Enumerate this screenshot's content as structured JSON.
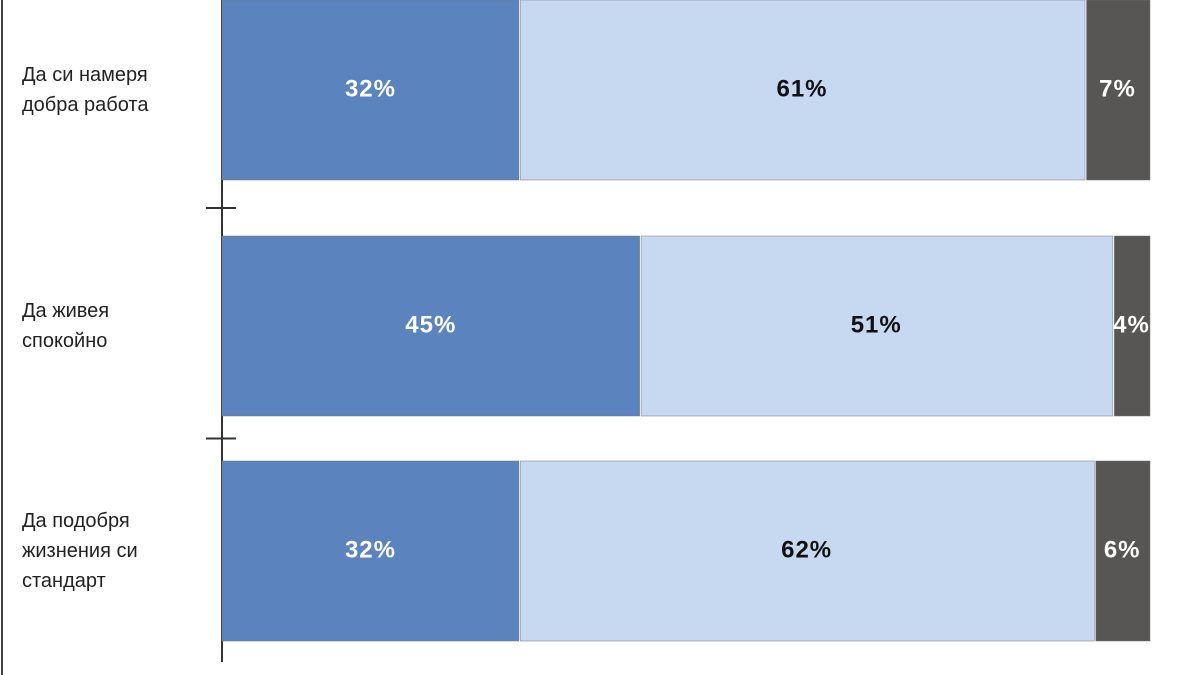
{
  "chart_data": {
    "type": "stacked-bar-horizontal",
    "categories": [
      "Да си намеря\nдобра работа",
      "Да живея\nспокойно",
      "Да подобря\nжизнения си\nстандарт"
    ],
    "series": [
      {
        "color": "#5b84bf",
        "values": [
          32,
          45,
          32
        ],
        "value_labels": [
          "32%",
          "45%",
          "32%"
        ]
      },
      {
        "color": "#c6d9f0",
        "values": [
          61,
          51,
          62
        ],
        "value_labels": [
          "61%",
          "51%",
          "62%"
        ]
      },
      {
        "color": "#585655",
        "values": [
          7,
          4,
          6
        ],
        "value_labels": [
          "7%",
          "4%",
          "6%"
        ]
      }
    ],
    "xlim": [
      0,
      100
    ]
  }
}
